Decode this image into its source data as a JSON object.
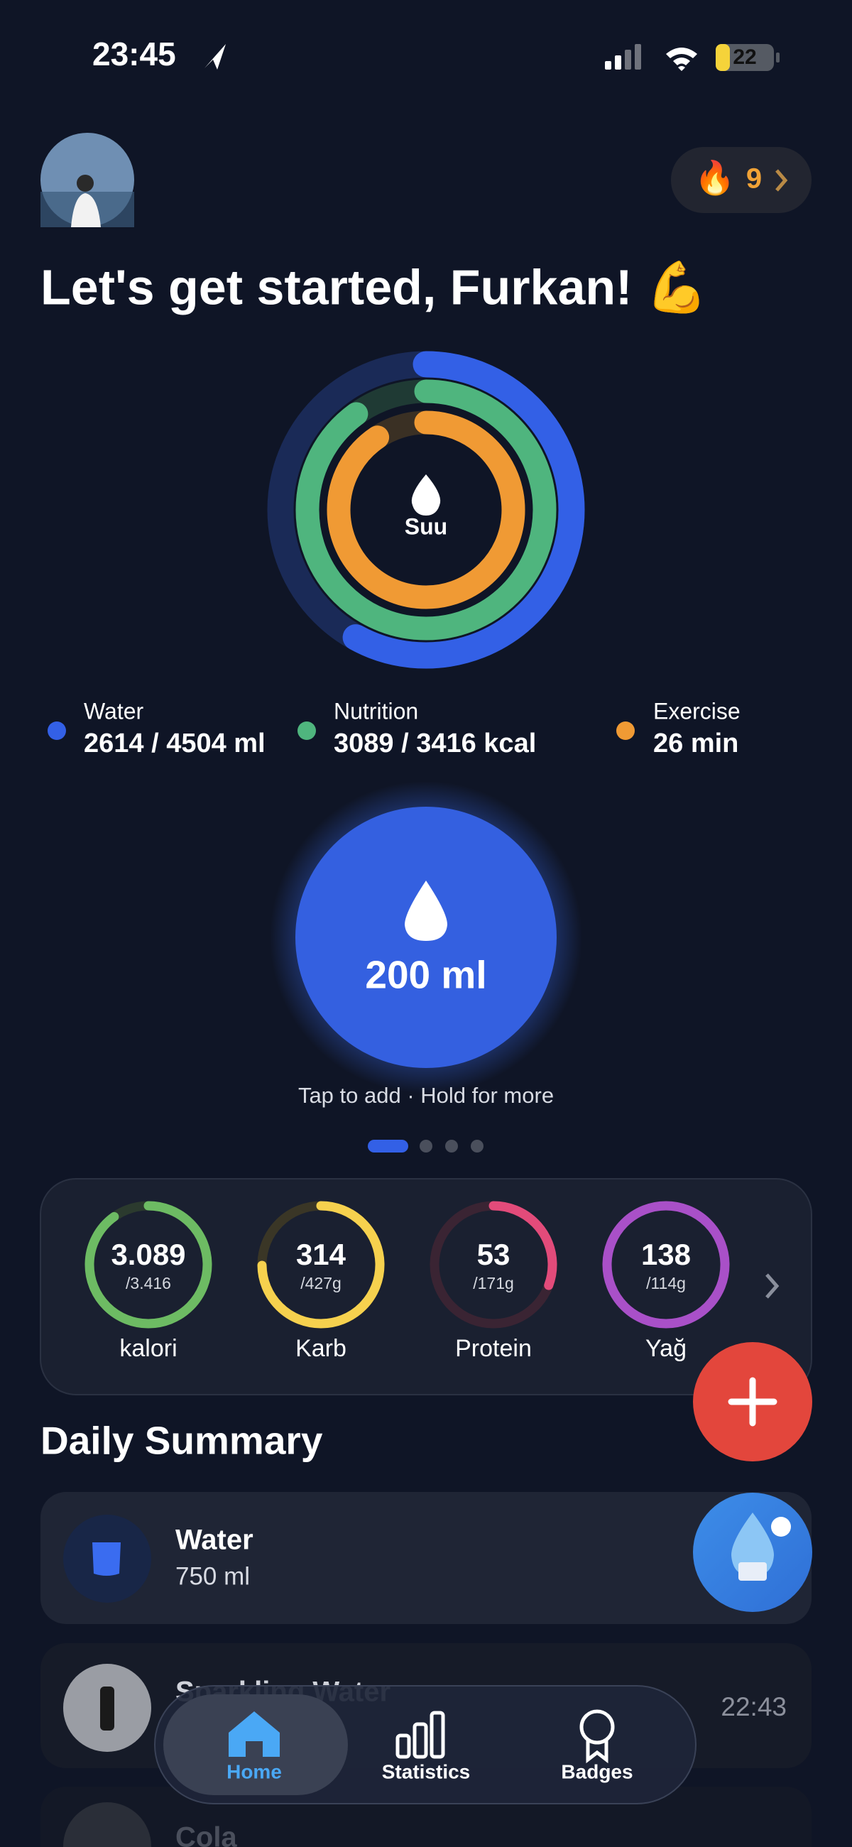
{
  "status_bar": {
    "time": "23:45",
    "battery": "22"
  },
  "header": {
    "streak": "9",
    "greeting": "Let's get started, Furkan! 💪"
  },
  "rings": {
    "center_label": "Suu"
  },
  "legend": [
    {
      "label": "Water",
      "value": "2614 / 4504 ml"
    },
    {
      "label": "Nutrition",
      "value": "3089 / 3416 kcal"
    },
    {
      "label": "Exercise",
      "value": "26 min"
    }
  ],
  "quick_add": {
    "amount": "200 ml",
    "hint": "Tap to add · Hold for more"
  },
  "macros": [
    {
      "value": "3.089",
      "goal": "/3.416",
      "label": "kalori"
    },
    {
      "value": "314",
      "goal": "/427g",
      "label": "Karb"
    },
    {
      "value": "53",
      "goal": "/171g",
      "label": "Protein"
    },
    {
      "value": "138",
      "goal": "/114g",
      "label": "Yağ"
    }
  ],
  "daily_summary": {
    "title": "Daily Summary",
    "entries": [
      {
        "name": "Water",
        "amount": "750 ml"
      },
      {
        "name": "Sparkling Water",
        "time": "22:43"
      },
      {
        "name": "Cola"
      }
    ]
  },
  "tab_bar": {
    "tabs": [
      "Home",
      "Statistics",
      "Badges"
    ]
  }
}
